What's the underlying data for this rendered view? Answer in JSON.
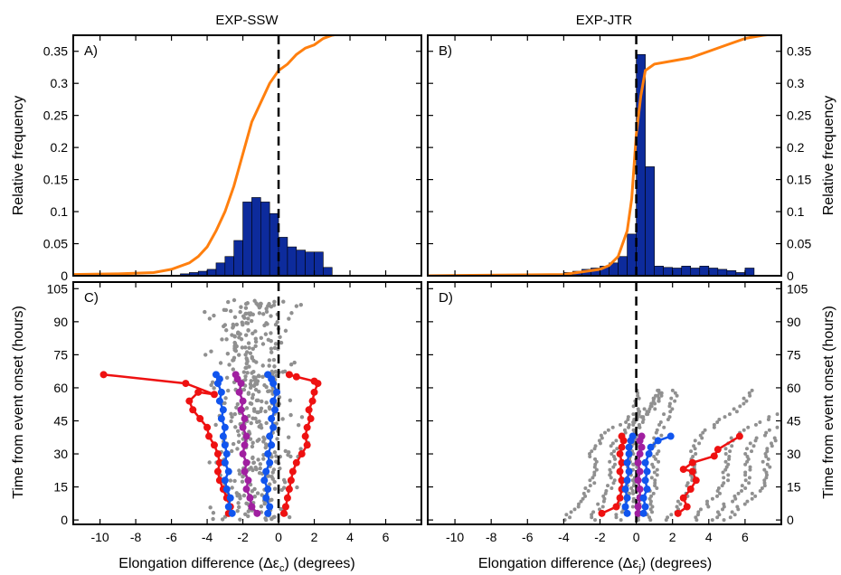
{
  "colors": {
    "bar": "#0d2b9c",
    "cdf": "#ff7f0e",
    "scatter": "#909090",
    "outer": "#ee1111",
    "inner": "#1155ee",
    "median": "#a01fa0"
  },
  "titles": {
    "left": "EXP-SSW",
    "right": "EXP-JTR"
  },
  "axis_labels": {
    "ylabel_top_left": "Relative frequency",
    "ylabel_top_right": "Relative frequency",
    "ylabel_bottom_left": "Time from event onset (hours)",
    "ylabel_bottom_right": "Time from event onset (hours)",
    "xlabel_left_prefix": "Elongation difference (Δε",
    "xlabel_left_sub": "c",
    "xlabel_left_suffix": ") (degrees)",
    "xlabel_right_prefix": "Elongation difference (Δε",
    "xlabel_right_sub": "j",
    "xlabel_right_suffix": ") (degrees)"
  },
  "panel_labels": [
    "A)",
    "B)",
    "C)",
    "D)"
  ],
  "chart_data": [
    {
      "panel": "A)",
      "type": "bar",
      "title": "EXP-SSW",
      "ylabel": "Relative frequency",
      "xlim": [
        -11.5,
        8
      ],
      "ylim": [
        0,
        0.375
      ],
      "yticks": [
        "0",
        "0.05",
        "0.1",
        "0.15",
        "0.2",
        "0.25",
        "0.3",
        "0.35"
      ],
      "bin_width": 0.5,
      "bin_starts": [
        -5.5,
        -5,
        -4.5,
        -4,
        -3.5,
        -3,
        -2.5,
        -2,
        -1.5,
        -1,
        -0.5,
        0,
        0.5,
        1,
        1.5,
        2,
        2.5
      ],
      "values": [
        0.003,
        0.005,
        0.007,
        0.01,
        0.02,
        0.03,
        0.055,
        0.115,
        0.122,
        0.115,
        0.097,
        0.06,
        0.045,
        0.04,
        0.037,
        0.037,
        0.013
      ],
      "cdf_line": {
        "x": [
          -11.5,
          -9,
          -7,
          -6,
          -5,
          -4.5,
          -4,
          -3.5,
          -3,
          -2.5,
          -2,
          -1.5,
          -1,
          -0.5,
          0,
          0.5,
          1,
          1.5,
          2,
          2.5,
          3,
          4,
          5,
          6,
          7,
          8
        ],
        "y": [
          0.002,
          0.003,
          0.005,
          0.01,
          0.02,
          0.03,
          0.045,
          0.07,
          0.1,
          0.14,
          0.19,
          0.24,
          0.27,
          0.3,
          0.32,
          0.33,
          0.345,
          0.355,
          0.36,
          0.37,
          0.375,
          0.38,
          0.38,
          0.38,
          0.38,
          0.38
        ]
      },
      "vline_x": 0
    },
    {
      "panel": "B)",
      "type": "bar",
      "title": "EXP-JTR",
      "ylabel": "Relative frequency",
      "xlim": [
        -11.5,
        8
      ],
      "ylim": [
        0,
        0.375
      ],
      "yticks": [
        "0",
        "0.05",
        "0.1",
        "0.15",
        "0.2",
        "0.25",
        "0.3",
        "0.35"
      ],
      "bin_width": 0.5,
      "bin_starts": [
        -4,
        -3.5,
        -3,
        -2.5,
        -2,
        -1.5,
        -1,
        -0.5,
        0,
        0.5,
        1,
        1.5,
        2,
        2.5,
        3,
        3.5,
        4,
        4.5,
        5,
        5.5,
        6
      ],
      "values": [
        0.005,
        0.007,
        0.01,
        0.012,
        0.015,
        0.02,
        0.03,
        0.065,
        0.345,
        0.17,
        0.015,
        0.013,
        0.012,
        0.015,
        0.012,
        0.015,
        0.012,
        0.01,
        0.008,
        0.005,
        0.012
      ],
      "cdf_line": {
        "x": [
          -11.5,
          -4,
          -3,
          -2,
          -1.5,
          -1,
          -0.5,
          -0.25,
          0,
          0.25,
          0.5,
          1,
          2,
          3,
          4,
          5,
          6,
          7,
          8
        ],
        "y": [
          0,
          0.002,
          0.006,
          0.01,
          0.016,
          0.03,
          0.07,
          0.12,
          0.22,
          0.28,
          0.32,
          0.33,
          0.335,
          0.34,
          0.35,
          0.36,
          0.37,
          0.375,
          0.378
        ]
      },
      "vline_x": 0
    },
    {
      "panel": "C)",
      "type": "scatter",
      "xlabel": "Elongation difference (Δεc) (degrees)",
      "ylabel": "Time from event onset (hours)",
      "xlim": [
        -11.5,
        8
      ],
      "ylim": [
        -2,
        108
      ],
      "xticks": [
        -10,
        -8,
        -6,
        -4,
        -2,
        0,
        2,
        4,
        6
      ],
      "yticks": [
        0,
        15,
        30,
        45,
        60,
        75,
        90,
        105
      ],
      "series": [
        {
          "role": "outer",
          "x": [
            -2.8,
            -2.7,
            -2.9,
            -3.1,
            -3.3,
            -3.4,
            -3.3,
            -3.4,
            -3.6,
            -3.9,
            -4.0,
            -4.4,
            -4.8,
            -5.0,
            -4.5,
            -3.6,
            -5.2,
            -9.8
          ],
          "y": [
            3,
            6,
            10,
            14,
            18,
            22,
            26,
            30,
            34,
            38,
            42,
            46,
            50,
            54,
            58,
            57,
            62,
            66
          ]
        },
        {
          "role": "inner",
          "x": [
            -2.6,
            -2.8,
            -2.7,
            -2.9,
            -3.0,
            -2.8,
            -3.0,
            -2.9,
            -3.0,
            -3.1,
            -3.0,
            -3.2,
            -3.1,
            -3.3,
            -3.2,
            -3.4,
            -3.3,
            -3.5
          ],
          "y": [
            3,
            6,
            10,
            14,
            18,
            22,
            26,
            30,
            34,
            38,
            42,
            46,
            50,
            54,
            58,
            62,
            64,
            66
          ]
        },
        {
          "role": "median",
          "x": [
            -1.2,
            -1.5,
            -1.6,
            -1.8,
            -1.7,
            -1.9,
            -1.8,
            -2.0,
            -1.9,
            -1.8,
            -2.0,
            -1.9,
            -2.1,
            -2.0,
            -2.2,
            -2.1,
            -2.3,
            -2.4
          ],
          "y": [
            3,
            6,
            10,
            14,
            18,
            22,
            26,
            30,
            34,
            38,
            42,
            46,
            50,
            54,
            58,
            62,
            64,
            66
          ]
        },
        {
          "role": "inner",
          "x": [
            -0.6,
            -0.5,
            -0.7,
            -0.6,
            -0.8,
            -0.7,
            -0.5,
            -0.6,
            -0.4,
            -0.5,
            -0.3,
            -0.4,
            -0.2,
            -0.3,
            -0.1,
            -0.3,
            -0.4,
            -0.6
          ],
          "y": [
            3,
            6,
            10,
            14,
            18,
            22,
            26,
            30,
            34,
            38,
            42,
            46,
            50,
            54,
            58,
            62,
            64,
            66
          ]
        },
        {
          "role": "outer",
          "x": [
            0.3,
            0.4,
            0.5,
            0.6,
            0.7,
            0.8,
            1.0,
            1.3,
            1.6,
            1.5,
            1.6,
            1.8,
            1.7,
            1.9,
            2.0,
            2.2,
            2.0,
            1.0,
            0.6
          ],
          "y": [
            3,
            6,
            10,
            14,
            18,
            22,
            26,
            30,
            34,
            38,
            42,
            46,
            50,
            54,
            58,
            62,
            63,
            65,
            66
          ]
        }
      ],
      "vline_x": 0
    },
    {
      "panel": "D)",
      "type": "scatter",
      "xlabel": "Elongation difference (Δεj) (degrees)",
      "ylabel": "Time from event onset (hours)",
      "xlim": [
        -11.5,
        8
      ],
      "ylim": [
        -2,
        108
      ],
      "xticks": [
        -10,
        -8,
        -6,
        -4,
        -2,
        0,
        2,
        4,
        6
      ],
      "yticks": [
        0,
        15,
        30,
        45,
        60,
        75,
        90,
        105
      ],
      "series": [
        {
          "role": "outer",
          "x": [
            -1.9,
            -1.1,
            -0.9,
            -0.8,
            -0.8,
            -0.9,
            -0.8,
            -0.9,
            -0.8,
            -0.7,
            -0.8
          ],
          "y": [
            3,
            6,
            10,
            14,
            18,
            22,
            26,
            30,
            33,
            36,
            38
          ]
        },
        {
          "role": "inner",
          "x": [
            -0.5,
            -0.6,
            -0.5,
            -0.6,
            -0.5,
            -0.4,
            -0.5,
            -0.4,
            -0.4,
            -0.3,
            -0.2
          ],
          "y": [
            3,
            6,
            10,
            14,
            18,
            22,
            26,
            30,
            33,
            36,
            38
          ]
        },
        {
          "role": "median",
          "x": [
            0.1,
            0.1,
            0.2,
            0.2,
            0.1,
            0.2,
            0.1,
            0.2,
            0.3,
            0.2,
            0.3
          ],
          "y": [
            3,
            6,
            10,
            14,
            18,
            22,
            26,
            30,
            33,
            36,
            38
          ]
        },
        {
          "role": "inner",
          "x": [
            0.4,
            0.5,
            0.4,
            0.6,
            0.5,
            0.6,
            0.5,
            0.7,
            0.8,
            1.2,
            1.9
          ],
          "y": [
            3,
            6,
            10,
            14,
            18,
            22,
            26,
            30,
            33,
            36,
            38
          ]
        },
        {
          "role": "outer",
          "x": [
            2.3,
            2.8,
            2.6,
            3.0,
            3.3,
            3.1,
            2.6,
            3.1,
            4.3,
            4.5,
            5.7
          ],
          "y": [
            3,
            6,
            10,
            14,
            18,
            22,
            23,
            26,
            29,
            32,
            38
          ]
        }
      ],
      "vline_x": 0
    }
  ]
}
